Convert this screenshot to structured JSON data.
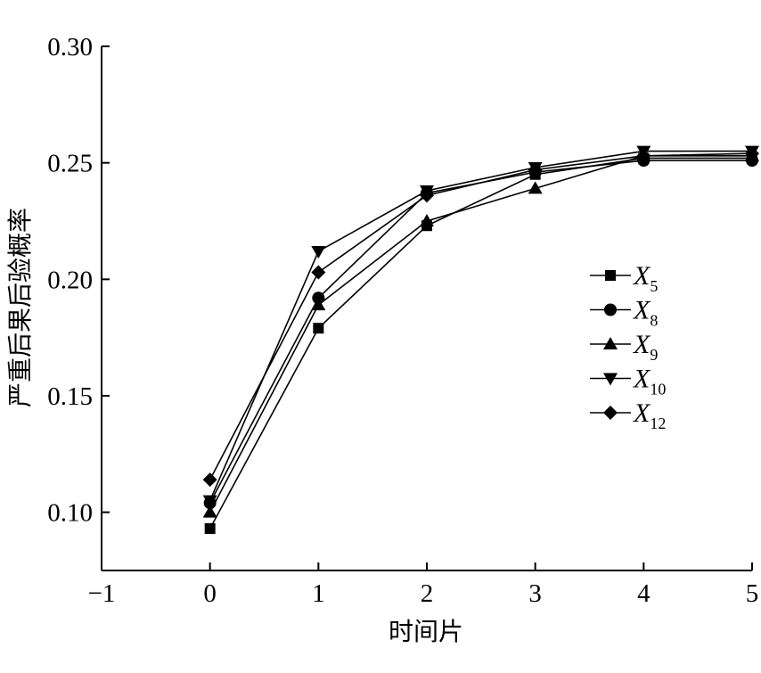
{
  "chart_data": {
    "type": "line",
    "xlabel": "时间片",
    "ylabel": "严重后果后验概率",
    "xlim": [
      -1,
      5
    ],
    "ylim": [
      0.075,
      0.3
    ],
    "xticks": [
      "−1",
      "0",
      "1",
      "2",
      "3",
      "4",
      "5"
    ],
    "xtick_values": [
      -1,
      0,
      1,
      2,
      3,
      4,
      5
    ],
    "yticks": [
      "0.10",
      "0.15",
      "0.20",
      "0.25",
      "0.30"
    ],
    "ytick_values": [
      0.1,
      0.15,
      0.2,
      0.25,
      0.3
    ],
    "grid": false,
    "legend_position": "right",
    "x": [
      0,
      1,
      2,
      3,
      4,
      5
    ],
    "series": [
      {
        "name_base": "X",
        "name_sub": "5",
        "marker": "square",
        "values": [
          0.093,
          0.179,
          0.223,
          0.245,
          0.252,
          0.252
        ]
      },
      {
        "name_base": "X",
        "name_sub": "8",
        "marker": "circle",
        "values": [
          0.104,
          0.192,
          0.237,
          0.246,
          0.251,
          0.251
        ]
      },
      {
        "name_base": "X",
        "name_sub": "9",
        "marker": "triangle-up",
        "values": [
          0.1,
          0.189,
          0.225,
          0.239,
          0.253,
          0.253
        ]
      },
      {
        "name_base": "X",
        "name_sub": "10",
        "marker": "triangle-down",
        "values": [
          0.105,
          0.212,
          0.238,
          0.248,
          0.255,
          0.255
        ]
      },
      {
        "name_base": "X",
        "name_sub": "12",
        "marker": "diamond",
        "values": [
          0.114,
          0.203,
          0.236,
          0.247,
          0.253,
          0.254
        ]
      }
    ]
  }
}
